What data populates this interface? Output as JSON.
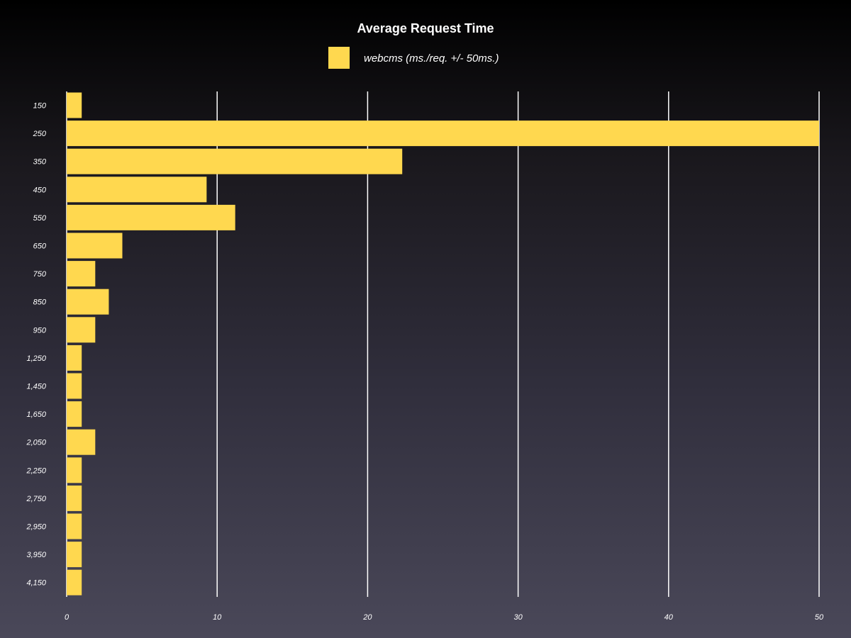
{
  "chart_data": {
    "type": "bar",
    "orientation": "horizontal",
    "title": "Average Request Time",
    "series": [
      {
        "name": "webcms (ms./req. +/- 50ms.)",
        "color": "#ffd84f",
        "values": [
          1,
          50,
          22.3,
          9.3,
          11.2,
          3.7,
          1.9,
          2.8,
          1.9,
          1,
          1,
          1,
          1.9,
          1,
          1,
          1,
          1,
          1
        ]
      }
    ],
    "categories": [
      "150",
      "250",
      "350",
      "450",
      "550",
      "650",
      "750",
      "850",
      "950",
      "1,250",
      "1,450",
      "1,650",
      "2,050",
      "2,250",
      "2,750",
      "2,950",
      "3,950",
      "4,150"
    ],
    "xlim": [
      0,
      50
    ],
    "xticks": [
      0,
      10,
      20,
      30,
      40,
      50
    ],
    "xtick_labels": [
      "0",
      "10",
      "20",
      "30",
      "40",
      "50"
    ],
    "grid": true,
    "legend_position": "top-center",
    "colors": {
      "bar": "#ffd84f",
      "grid": "#ffffff",
      "text": "#ffffff"
    }
  }
}
